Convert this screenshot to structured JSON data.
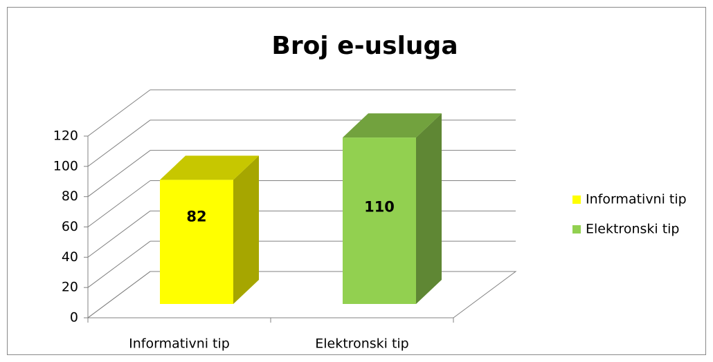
{
  "chart_data": {
    "type": "bar3d",
    "title": "Broj e-usluga",
    "categories": [
      "Informativni tip",
      "Elektronski tip"
    ],
    "series": [
      {
        "name": "Informativni tip",
        "color": "#ffff00",
        "values": [
          82,
          null
        ]
      },
      {
        "name": "Elektronski tip",
        "color": "#92d050",
        "values": [
          null,
          110
        ]
      }
    ],
    "ylim": [
      0,
      120
    ],
    "yticks": [
      0,
      20,
      40,
      60,
      80,
      100,
      120
    ],
    "grid": true,
    "legend": "right"
  }
}
